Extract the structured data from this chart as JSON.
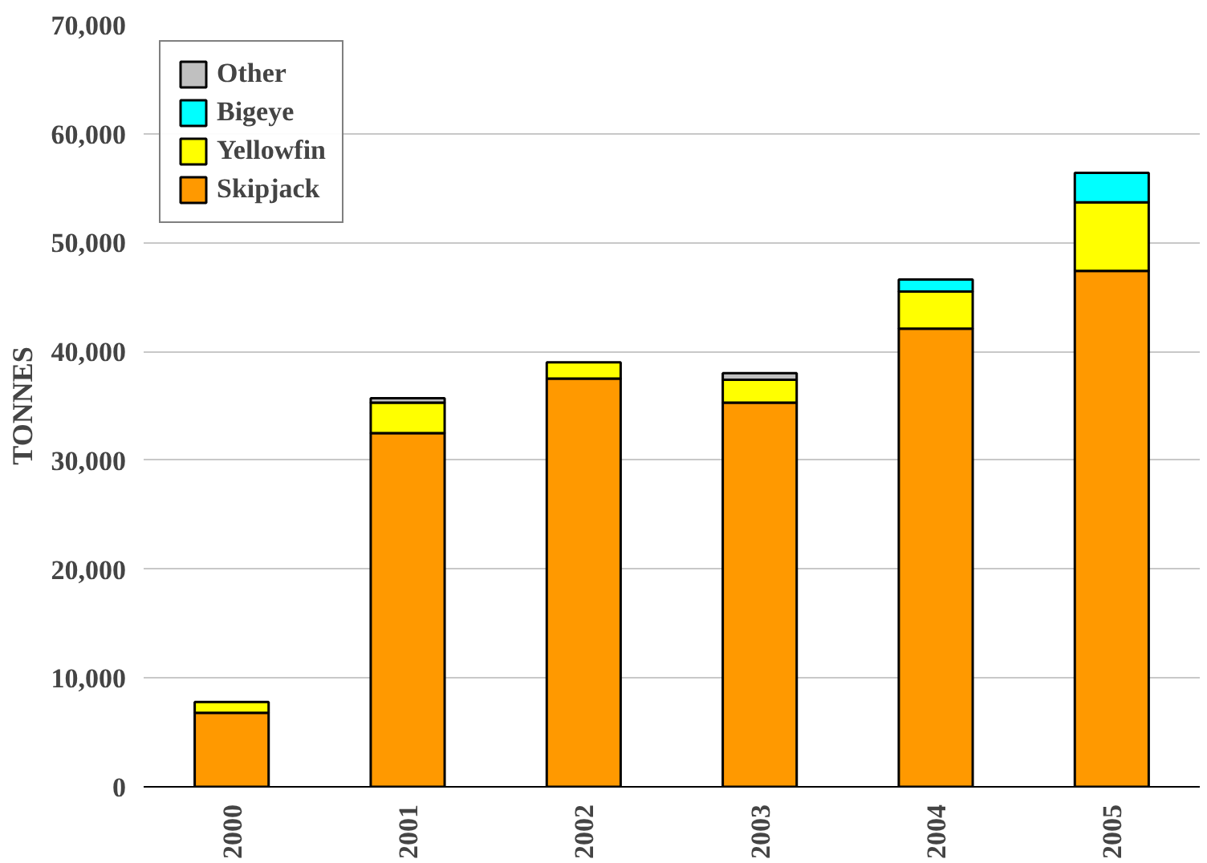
{
  "chart_data": {
    "type": "bar",
    "stacked": true,
    "ylabel": "TONNES",
    "categories": [
      "2000",
      "2001",
      "2002",
      "2003",
      "2004",
      "2005"
    ],
    "series": [
      {
        "name": "Skipjack",
        "color": "#ff9900",
        "values": [
          6800,
          32500,
          37500,
          35300,
          42100,
          47400
        ]
      },
      {
        "name": "Yellowfin",
        "color": "#ffff00",
        "values": [
          1000,
          2800,
          1500,
          2100,
          3400,
          6300
        ]
      },
      {
        "name": "Bigeye",
        "color": "#00ffff",
        "values": [
          null,
          null,
          null,
          null,
          1100,
          2700
        ]
      },
      {
        "name": "Other",
        "color": "#c0c0c0",
        "values": [
          null,
          400,
          null,
          600,
          null,
          null
        ]
      }
    ],
    "ylim": [
      0,
      70000
    ],
    "yticks": [
      {
        "value": 0,
        "label": "0"
      },
      {
        "value": 10000,
        "label": "10,000"
      },
      {
        "value": 20000,
        "label": "20,000"
      },
      {
        "value": 30000,
        "label": "30,000"
      },
      {
        "value": 40000,
        "label": "40,000"
      },
      {
        "value": 50000,
        "label": "50,000"
      },
      {
        "value": 60000,
        "label": "60,000"
      },
      {
        "value": 70000,
        "label": "70,000"
      }
    ],
    "grid": "y",
    "legend": "top left"
  }
}
